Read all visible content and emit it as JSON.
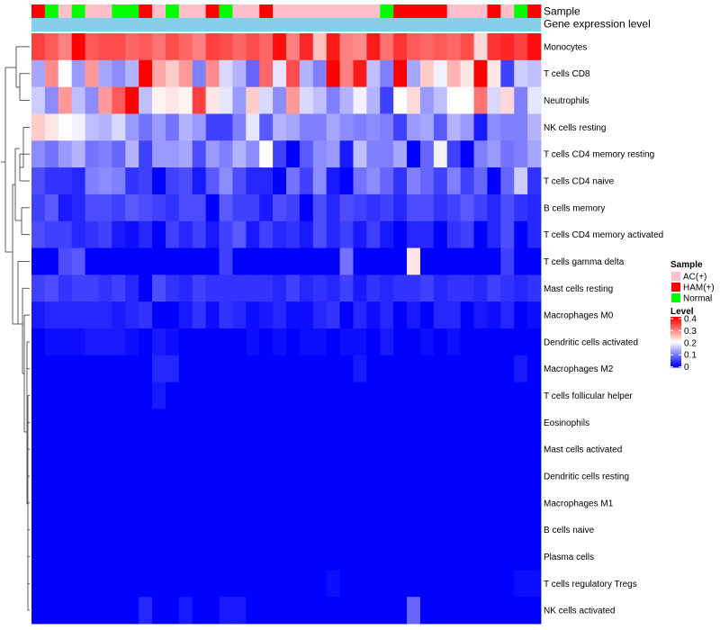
{
  "chart_data": {
    "type": "heatmap",
    "title": "",
    "xlabel": "",
    "ylabel": "",
    "annotation_tracks": [
      "Sample",
      "Gene expression level"
    ],
    "samples": [
      "HAM(+)",
      "Normal",
      "AC(+)",
      "Normal",
      "AC(+)",
      "AC(+)",
      "Normal",
      "Normal",
      "HAM(+)",
      "AC(+)",
      "Normal",
      "AC(+)",
      "AC(+)",
      "HAM(+)",
      "Normal",
      "AC(+)",
      "AC(+)",
      "HAM(+)",
      "AC(+)",
      "AC(+)",
      "AC(+)",
      "AC(+)",
      "AC(+)",
      "AC(+)",
      "AC(+)",
      "AC(+)",
      "Normal",
      "HAM(+)",
      "HAM(+)",
      "HAM(+)",
      "HAM(+)",
      "AC(+)",
      "AC(+)",
      "AC(+)",
      "HAM(+)",
      "AC(+)",
      "Normal",
      "HAM(+)"
    ],
    "rows": [
      "Monocytes",
      "T cells CD8",
      "Neutrophils",
      "NK cells resting",
      "T cells CD4 memory resting",
      "T cells CD4 naive",
      "B cells memory",
      "T cells CD4 memory activated",
      "T cells gamma delta",
      "Mast cells resting",
      "Macrophages M0",
      "Dendritic cells activated",
      "Macrophages M2",
      "T cells follicular helper",
      "Eosinophils",
      "Mast cells activated",
      "Dendritic cells resting",
      "Macrophages M1",
      "B cells naive",
      "Plasma cells",
      "T cells regulatory  Tregs",
      "NK cells activated"
    ],
    "values": [
      [
        0.35,
        0.33,
        0.3,
        0.4,
        0.33,
        0.34,
        0.34,
        0.32,
        0.33,
        0.31,
        0.34,
        0.32,
        0.3,
        0.35,
        0.34,
        0.32,
        0.34,
        0.32,
        0.39,
        0.3,
        0.37,
        0.25,
        0.38,
        0.3,
        0.29,
        0.38,
        0.31,
        0.36,
        0.33,
        0.32,
        0.33,
        0.32,
        0.34,
        0.23,
        0.36,
        0.37,
        0.35,
        0.39
      ],
      [
        0.13,
        0.29,
        0.2,
        0.12,
        0.28,
        0.13,
        0.11,
        0.14,
        0.4,
        0.27,
        0.24,
        0.28,
        0.1,
        0.29,
        0.17,
        0.14,
        0.08,
        0.32,
        0.18,
        0.34,
        0.14,
        0.1,
        0.4,
        0.3,
        0.38,
        0.15,
        0.1,
        0.4,
        0.13,
        0.24,
        0.19,
        0.26,
        0.22,
        0.4,
        0.22,
        0.05,
        0.16,
        0.15
      ],
      [
        0.16,
        0.11,
        0.28,
        0.15,
        0.11,
        0.28,
        0.33,
        0.4,
        0.15,
        0.21,
        0.22,
        0.21,
        0.35,
        0.22,
        0.18,
        0.12,
        0.24,
        0.17,
        0.11,
        0.28,
        0.17,
        0.15,
        0.1,
        0.14,
        0.19,
        0.14,
        0.05,
        0.2,
        0.23,
        0.12,
        0.15,
        0.2,
        0.2,
        0.31,
        0.17,
        0.23,
        0.1,
        0.18
      ],
      [
        0.24,
        0.22,
        0.2,
        0.19,
        0.15,
        0.14,
        0.17,
        0.12,
        0.09,
        0.12,
        0.09,
        0.14,
        0.12,
        0.05,
        0.05,
        0.1,
        0.18,
        0.07,
        0.14,
        0.13,
        0.1,
        0.1,
        0.13,
        0.11,
        0.1,
        0.11,
        0.1,
        0.05,
        0.12,
        0.13,
        0.07,
        0.14,
        0.12,
        0.02,
        0.11,
        0.1,
        0.1,
        0.14
      ],
      [
        0.11,
        0.09,
        0.12,
        0.14,
        0.09,
        0.1,
        0.08,
        0.14,
        0.05,
        0.12,
        0.12,
        0.13,
        0.06,
        0.12,
        0.1,
        0.14,
        0.11,
        0.2,
        0.05,
        0.0,
        0.07,
        0.11,
        0.12,
        0.02,
        0.15,
        0.1,
        0.1,
        0.13,
        0.0,
        0.08,
        0.19,
        0.05,
        0.0,
        0.1,
        0.12,
        0.09,
        0.1,
        0.13
      ],
      [
        0.06,
        0.04,
        0.04,
        0.03,
        0.1,
        0.11,
        0.1,
        0.04,
        0.05,
        0.0,
        0.05,
        0.06,
        0.02,
        0.07,
        0.11,
        0.06,
        0.03,
        0.03,
        0.0,
        0.09,
        0.05,
        0.11,
        0.02,
        0.0,
        0.09,
        0.11,
        0.08,
        0.04,
        0.1,
        0.08,
        0.05,
        0.1,
        0.05,
        0.08,
        0.0,
        0.08,
        0.16,
        0.04
      ],
      [
        0.05,
        0.07,
        0.02,
        0.03,
        0.06,
        0.06,
        0.05,
        0.07,
        0.06,
        0.05,
        0.04,
        0.06,
        0.06,
        0.0,
        0.07,
        0.05,
        0.05,
        0.02,
        0.06,
        0.05,
        0.0,
        0.06,
        0.03,
        0.06,
        0.05,
        0.04,
        0.05,
        0.03,
        0.06,
        0.06,
        0.04,
        0.05,
        0.07,
        0.05,
        0.03,
        0.06,
        0.04,
        0.03
      ],
      [
        0.06,
        0.05,
        0.05,
        0.03,
        0.04,
        0.05,
        0.02,
        0.01,
        0.03,
        0.0,
        0.05,
        0.03,
        0.05,
        0.02,
        0.05,
        0.07,
        0.02,
        0.05,
        0.03,
        0.04,
        0.02,
        0.06,
        0.03,
        0.05,
        0.02,
        0.05,
        0.02,
        0.0,
        0.03,
        0.03,
        0.0,
        0.04,
        0.05,
        0.0,
        0.03,
        0.06,
        0.0,
        0.03
      ],
      [
        0.0,
        0.0,
        0.06,
        0.07,
        0.0,
        0.0,
        0.0,
        0.0,
        0.0,
        0.0,
        0.0,
        0.0,
        0.0,
        0.0,
        0.05,
        0.0,
        0.0,
        0.0,
        0.0,
        0.0,
        0.0,
        0.0,
        0.0,
        0.09,
        0.0,
        0.0,
        0.0,
        0.0,
        0.22,
        0.0,
        0.0,
        0.0,
        0.0,
        0.0,
        0.0,
        0.05,
        0.0,
        0.0
      ],
      [
        0.05,
        0.06,
        0.04,
        0.05,
        0.05,
        0.04,
        0.05,
        0.03,
        0.0,
        0.06,
        0.04,
        0.03,
        0.05,
        0.04,
        0.04,
        0.04,
        0.04,
        0.04,
        0.03,
        0.05,
        0.03,
        0.04,
        0.03,
        0.05,
        0.02,
        0.04,
        0.03,
        0.04,
        0.04,
        0.05,
        0.03,
        0.04,
        0.04,
        0.03,
        0.05,
        0.04,
        0.03,
        0.04
      ],
      [
        0.02,
        0.03,
        0.03,
        0.03,
        0.03,
        0.03,
        0.02,
        0.03,
        0.04,
        0.0,
        0.0,
        0.02,
        0.04,
        0.01,
        0.04,
        0.03,
        0.01,
        0.02,
        0.03,
        0.01,
        0.01,
        0.03,
        0.04,
        0.0,
        0.03,
        0.01,
        0.03,
        0.0,
        0.02,
        0.0,
        0.03,
        0.03,
        0.0,
        0.02,
        0.01,
        0.03,
        0.0,
        0.01
      ],
      [
        0.0,
        0.01,
        0.01,
        0.01,
        0.02,
        0.02,
        0.02,
        0.01,
        0.0,
        0.02,
        0.01,
        0.0,
        0.0,
        0.0,
        0.0,
        0.0,
        0.01,
        0.0,
        0.01,
        0.0,
        0.01,
        0.01,
        0.0,
        0.01,
        0.01,
        0.0,
        0.02,
        0.0,
        0.0,
        0.01,
        0.0,
        0.01,
        0.0,
        0.0,
        0.0,
        0.0,
        0.0,
        0.0
      ],
      [
        0.0,
        0.0,
        0.0,
        0.0,
        0.0,
        0.0,
        0.0,
        0.0,
        0.0,
        0.03,
        0.03,
        0.0,
        0.0,
        0.0,
        0.0,
        0.0,
        0.0,
        0.0,
        0.0,
        0.0,
        0.0,
        0.0,
        0.0,
        0.0,
        0.02,
        0.0,
        0.0,
        0.0,
        0.0,
        0.0,
        0.0,
        0.0,
        0.0,
        0.0,
        0.0,
        0.0,
        0.02,
        0.0
      ],
      [
        0.0,
        0.0,
        0.0,
        0.0,
        0.0,
        0.0,
        0.0,
        0.0,
        0.0,
        0.02,
        0.0,
        0.0,
        0.0,
        0.0,
        0.0,
        0.0,
        0.0,
        0.0,
        0.0,
        0.0,
        0.0,
        0.0,
        0.0,
        0.0,
        0.0,
        0.0,
        0.0,
        0.0,
        0.0,
        0.0,
        0.0,
        0.0,
        0.0,
        0.0,
        0.0,
        0.0,
        0.0,
        0.0
      ],
      [
        0.0,
        0.0,
        0.0,
        0.0,
        0.0,
        0.0,
        0.0,
        0.0,
        0.0,
        0.0,
        0.0,
        0.0,
        0.0,
        0.0,
        0.0,
        0.0,
        0.0,
        0.0,
        0.0,
        0.0,
        0.0,
        0.0,
        0.0,
        0.0,
        0.0,
        0.0,
        0.0,
        0.0,
        0.0,
        0.0,
        0.0,
        0.0,
        0.0,
        0.0,
        0.0,
        0.0,
        0.0,
        0.0
      ],
      [
        0.0,
        0.0,
        0.0,
        0.0,
        0.0,
        0.0,
        0.0,
        0.0,
        0.0,
        0.0,
        0.0,
        0.0,
        0.0,
        0.0,
        0.0,
        0.0,
        0.0,
        0.0,
        0.0,
        0.0,
        0.0,
        0.0,
        0.0,
        0.0,
        0.0,
        0.0,
        0.0,
        0.0,
        0.0,
        0.0,
        0.0,
        0.0,
        0.0,
        0.0,
        0.0,
        0.0,
        0.0,
        0.0
      ],
      [
        0.0,
        0.0,
        0.0,
        0.0,
        0.0,
        0.0,
        0.0,
        0.0,
        0.0,
        0.0,
        0.0,
        0.0,
        0.0,
        0.0,
        0.0,
        0.0,
        0.0,
        0.0,
        0.0,
        0.0,
        0.0,
        0.0,
        0.0,
        0.0,
        0.0,
        0.0,
        0.0,
        0.0,
        0.0,
        0.0,
        0.0,
        0.0,
        0.0,
        0.0,
        0.0,
        0.0,
        0.0,
        0.0
      ],
      [
        0.0,
        0.0,
        0.0,
        0.0,
        0.0,
        0.0,
        0.0,
        0.0,
        0.0,
        0.0,
        0.0,
        0.0,
        0.0,
        0.0,
        0.0,
        0.0,
        0.0,
        0.0,
        0.0,
        0.0,
        0.0,
        0.0,
        0.0,
        0.0,
        0.0,
        0.0,
        0.0,
        0.0,
        0.0,
        0.0,
        0.0,
        0.0,
        0.0,
        0.0,
        0.0,
        0.0,
        0.0,
        0.0
      ],
      [
        0.0,
        0.0,
        0.0,
        0.0,
        0.0,
        0.0,
        0.0,
        0.0,
        0.0,
        0.0,
        0.0,
        0.0,
        0.0,
        0.0,
        0.0,
        0.0,
        0.0,
        0.0,
        0.0,
        0.0,
        0.0,
        0.0,
        0.0,
        0.0,
        0.0,
        0.0,
        0.0,
        0.0,
        0.0,
        0.0,
        0.0,
        0.0,
        0.0,
        0.0,
        0.0,
        0.0,
        0.0,
        0.0
      ],
      [
        0.0,
        0.0,
        0.0,
        0.0,
        0.0,
        0.0,
        0.0,
        0.0,
        0.0,
        0.0,
        0.0,
        0.0,
        0.0,
        0.0,
        0.0,
        0.0,
        0.0,
        0.0,
        0.0,
        0.0,
        0.0,
        0.0,
        0.0,
        0.0,
        0.0,
        0.0,
        0.0,
        0.0,
        0.0,
        0.0,
        0.0,
        0.0,
        0.0,
        0.0,
        0.0,
        0.0,
        0.0,
        0.0
      ],
      [
        0.0,
        0.0,
        0.0,
        0.0,
        0.0,
        0.0,
        0.0,
        0.0,
        0.0,
        0.0,
        0.0,
        0.0,
        0.0,
        0.0,
        0.0,
        0.0,
        0.0,
        0.0,
        0.0,
        0.0,
        0.0,
        0.0,
        0.01,
        0.0,
        0.0,
        0.0,
        0.0,
        0.0,
        0.0,
        0.0,
        0.0,
        0.0,
        0.0,
        0.0,
        0.0,
        0.0,
        0.01,
        0.01
      ],
      [
        0.0,
        0.0,
        0.0,
        0.0,
        0.0,
        0.0,
        0.0,
        0.0,
        0.03,
        0.0,
        0.0,
        0.02,
        0.0,
        0.0,
        0.02,
        0.02,
        0.0,
        0.0,
        0.0,
        0.0,
        0.0,
        0.0,
        0.0,
        0.0,
        0.0,
        0.0,
        0.0,
        0.0,
        0.08,
        0.0,
        0.0,
        0.0,
        0.0,
        0.0,
        0.0,
        0.0,
        0.0,
        0.0
      ]
    ],
    "legend": {
      "sample": {
        "title": "Sample",
        "entries": [
          {
            "label": "AC(+)",
            "color": "#FFC0CB"
          },
          {
            "label": "HAM(+)",
            "color": "#FF0000"
          },
          {
            "label": "Normal",
            "color": "#00FF00"
          }
        ]
      },
      "level": {
        "title": "Level",
        "min": 0,
        "max": 0.4,
        "ticks": [
          "0.4",
          "0.3",
          "0.2",
          "0.1",
          "0"
        ],
        "color_low": "#0000FF",
        "color_mid": "#FFFFFF",
        "color_high": "#FF0000"
      }
    },
    "expression_bar_color": "#87CEEB",
    "legend_position": "right"
  }
}
